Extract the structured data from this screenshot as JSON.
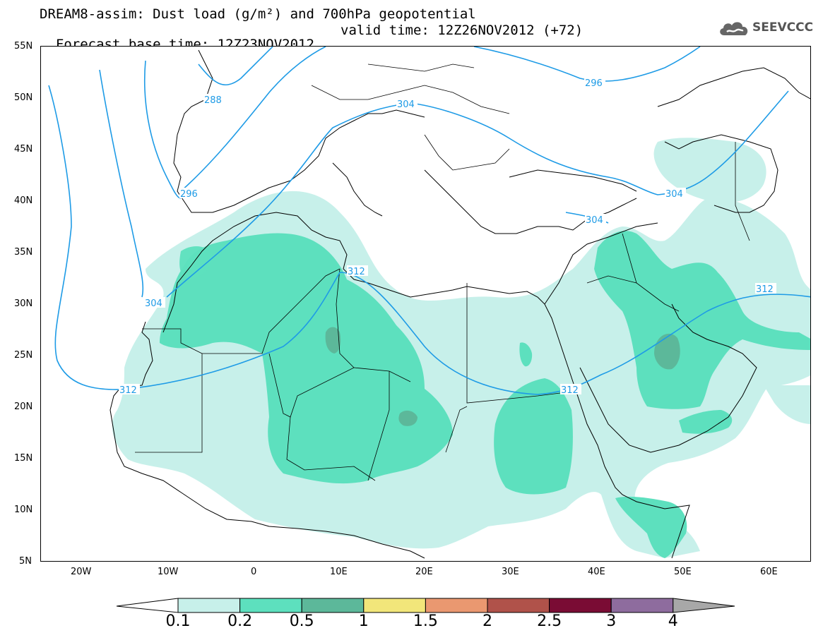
{
  "title": {
    "line1": "DREAM8-assim: Dust load (g/m²) and 700hPa geopotential",
    "base_time": "Forecast base time: 12Z23NOV2012",
    "valid_time": "valid time: 12Z26NOV2012 (+72)"
  },
  "logo": {
    "text": "SEEVCCC",
    "icon": "cloud-icon"
  },
  "lat_labels": [
    "55N",
    "50N",
    "45N",
    "40N",
    "35N",
    "30N",
    "25N",
    "20N",
    "15N",
    "10N",
    "5N"
  ],
  "lon_labels": [
    "20W",
    "10W",
    "0",
    "10E",
    "20E",
    "30E",
    "40E",
    "50E",
    "60E"
  ],
  "contours": [
    {
      "label": "288",
      "value": 288
    },
    {
      "label": "296",
      "value": 296
    },
    {
      "label": "296",
      "value": 296
    },
    {
      "label": "304",
      "value": 304
    },
    {
      "label": "304",
      "value": 304
    },
    {
      "label": "304",
      "value": 304
    },
    {
      "label": "304",
      "value": 304
    },
    {
      "label": "312",
      "value": 312
    },
    {
      "label": "312",
      "value": 312
    },
    {
      "label": "312",
      "value": 312
    },
    {
      "label": "312",
      "value": 312
    }
  ],
  "colorbar": {
    "labels": [
      "0.1",
      "0.2",
      "0.5",
      "1",
      "1.5",
      "2",
      "2.5",
      "3",
      "4"
    ],
    "colors": [
      "#c7f0ea",
      "#5de0be",
      "#5cb89a",
      "#f2e67a",
      "#ea9870",
      "#b0524a",
      "#7a0c34",
      "#8e6c9e",
      "#a8a8a8"
    ]
  },
  "colors": {
    "contour": "#1e9be6",
    "dust_light": "#c7f0ea",
    "dust_mid": "#5de0be",
    "dust_dark": "#5cb89a"
  }
}
